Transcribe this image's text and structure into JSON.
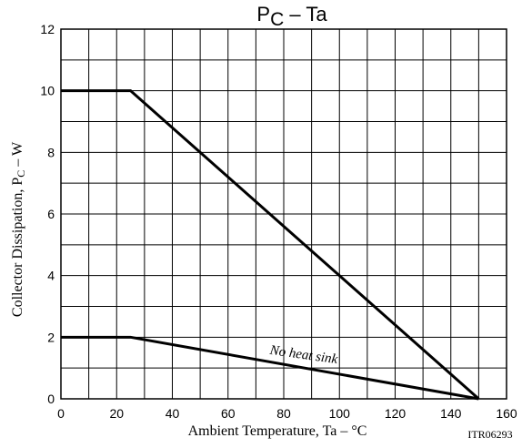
{
  "chart_data": {
    "type": "line",
    "title": {
      "main": "P",
      "sub": "C",
      "rest": " – Ta"
    },
    "xlabel": "Ambient Temperature, Ta  –  °C",
    "ylabel": {
      "main": "Collector Dissipation, P",
      "sub": "C",
      "rest": "  –  W"
    },
    "x_ticks": [
      "0",
      "20",
      "40",
      "60",
      "80",
      "100",
      "120",
      "140",
      "160"
    ],
    "y_ticks": [
      "0",
      "2",
      "4",
      "6",
      "8",
      "10",
      "12"
    ],
    "xlim": [
      0,
      160
    ],
    "ylim": [
      0,
      12
    ],
    "grid": true,
    "x_minor_step": 10,
    "y_minor_step": 1,
    "series": [
      {
        "x": [
          0,
          25,
          150
        ],
        "y": [
          10,
          10,
          0
        ]
      },
      {
        "name": "No heat sink",
        "x": [
          0,
          25,
          150
        ],
        "y": [
          2,
          2,
          0
        ]
      }
    ],
    "annotations": [
      {
        "text": "No heat sink",
        "x": 87,
        "y": 1.3,
        "rotate_deg": 8
      }
    ],
    "figure_id": "ITR06293"
  }
}
